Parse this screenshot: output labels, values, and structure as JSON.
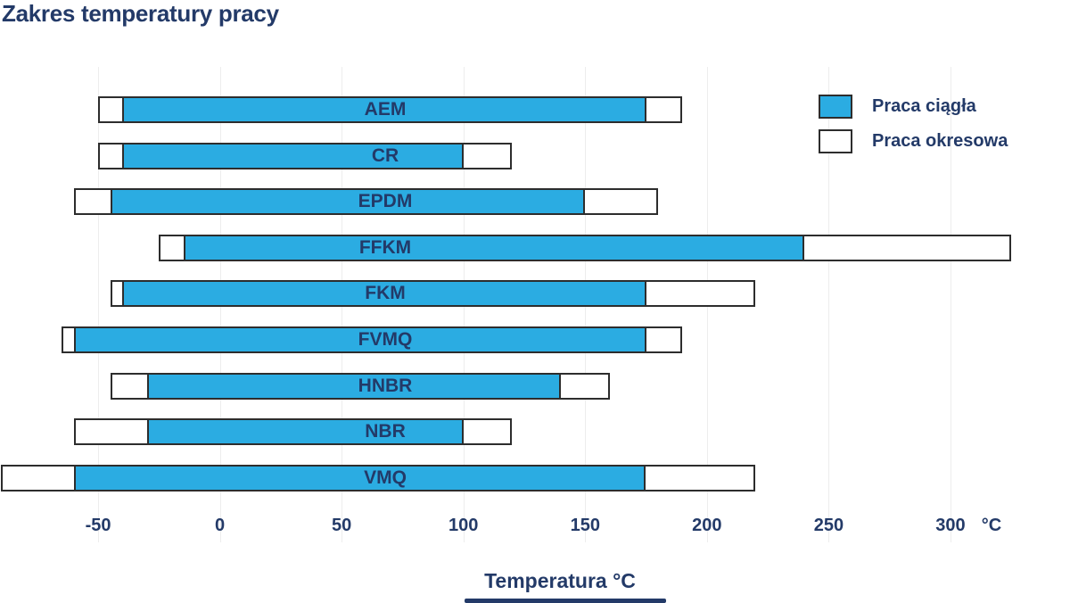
{
  "title": "Zakres temperatury pracy",
  "colors": {
    "accent_blue": "#2bace2",
    "navy_text": "#233a68",
    "bar_border": "#2d2d2d",
    "gridline": "#ededed",
    "background": "#ffffff"
  },
  "legend": [
    {
      "label": "Praca ciągła",
      "swatch": "blue-filled"
    },
    {
      "label": "Praca okresowa",
      "swatch": "white-outlined"
    }
  ],
  "chart_data": {
    "type": "bar",
    "orientation": "horizontal-range",
    "title": "Zakres temperatury pracy",
    "xlabel": "Temperatura °C",
    "x_unit": "°C",
    "xlim": [
      -90,
      349
    ],
    "xticks": [
      -50,
      0,
      50,
      100,
      150,
      200,
      250,
      300
    ],
    "grid": "vertical",
    "legend_position": "top-right",
    "categories": [
      "AEM",
      "CR",
      "EPDM",
      "FFKM",
      "FKM",
      "FVMQ",
      "HNBR",
      "NBR",
      "VMQ"
    ],
    "series": [
      {
        "name": "Praca ciągła",
        "ranges": [
          [
            -40,
            175
          ],
          [
            -40,
            100
          ],
          [
            -45,
            150
          ],
          [
            -15,
            240
          ],
          [
            -40,
            175
          ],
          [
            -60,
            175
          ],
          [
            -30,
            140
          ],
          [
            -30,
            100
          ],
          [
            -60,
            175
          ]
        ]
      },
      {
        "name": "Praca okresowa",
        "ranges": [
          [
            -50,
            190
          ],
          [
            -50,
            120
          ],
          [
            -60,
            180
          ],
          [
            -25,
            325
          ],
          [
            -45,
            220
          ],
          [
            -65,
            190
          ],
          [
            -45,
            160
          ],
          [
            -60,
            120
          ],
          [
            -90,
            220
          ]
        ]
      }
    ]
  }
}
